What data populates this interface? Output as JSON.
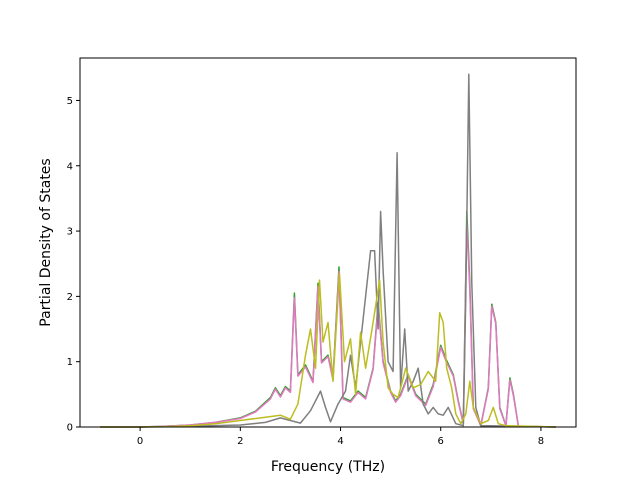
{
  "chart_data": {
    "type": "line",
    "title": "",
    "xlabel": "Frequency (THz)",
    "ylabel": "Partial Density of States",
    "xlim": [
      -1.2,
      8.7
    ],
    "ylim": [
      0,
      5.65
    ],
    "xticks": [
      0,
      2,
      4,
      6,
      8
    ],
    "yticks": [
      0,
      1,
      2,
      3,
      4,
      5
    ],
    "grid": false,
    "legend": "none",
    "series": [
      {
        "color": "#2ca02c",
        "points": [
          [
            -0.8,
            0
          ],
          [
            0,
            0
          ],
          [
            0.5,
            0.01
          ],
          [
            1,
            0.03
          ],
          [
            1.5,
            0.07
          ],
          [
            2,
            0.14
          ],
          [
            2.3,
            0.24
          ],
          [
            2.6,
            0.45
          ],
          [
            2.7,
            0.6
          ],
          [
            2.8,
            0.48
          ],
          [
            2.9,
            0.62
          ],
          [
            3.0,
            0.55
          ],
          [
            3.08,
            2.05
          ],
          [
            3.15,
            0.8
          ],
          [
            3.3,
            0.95
          ],
          [
            3.45,
            0.7
          ],
          [
            3.55,
            2.2
          ],
          [
            3.62,
            1.0
          ],
          [
            3.75,
            1.1
          ],
          [
            3.85,
            0.75
          ],
          [
            3.97,
            2.45
          ],
          [
            4.05,
            0.45
          ],
          [
            4.2,
            0.4
          ],
          [
            4.35,
            0.55
          ],
          [
            4.5,
            0.45
          ],
          [
            4.65,
            0.9
          ],
          [
            4.75,
            1.9
          ],
          [
            4.85,
            1.0
          ],
          [
            5.0,
            0.55
          ],
          [
            5.1,
            0.4
          ],
          [
            5.2,
            0.5
          ],
          [
            5.35,
            0.8
          ],
          [
            5.5,
            0.5
          ],
          [
            5.7,
            0.35
          ],
          [
            5.85,
            0.65
          ],
          [
            6.0,
            1.25
          ],
          [
            6.1,
            1.05
          ],
          [
            6.25,
            0.8
          ],
          [
            6.35,
            0.4
          ],
          [
            6.45,
            0.05
          ],
          [
            6.52,
            3.3
          ],
          [
            6.58,
            2.2
          ],
          [
            6.65,
            0.3
          ],
          [
            6.8,
            0.02
          ],
          [
            6.95,
            0.6
          ],
          [
            7.02,
            1.88
          ],
          [
            7.1,
            1.6
          ],
          [
            7.18,
            0.3
          ],
          [
            7.3,
            0.02
          ],
          [
            7.38,
            0.75
          ],
          [
            7.45,
            0.5
          ],
          [
            7.55,
            0.01
          ],
          [
            8.3,
            0
          ]
        ]
      },
      {
        "color": "#e377c2",
        "points": [
          [
            -0.8,
            0
          ],
          [
            0,
            0
          ],
          [
            0.5,
            0.01
          ],
          [
            1,
            0.03
          ],
          [
            1.5,
            0.07
          ],
          [
            2,
            0.13
          ],
          [
            2.3,
            0.23
          ],
          [
            2.6,
            0.43
          ],
          [
            2.7,
            0.58
          ],
          [
            2.8,
            0.46
          ],
          [
            2.9,
            0.6
          ],
          [
            3.0,
            0.53
          ],
          [
            3.08,
            1.98
          ],
          [
            3.15,
            0.78
          ],
          [
            3.3,
            0.92
          ],
          [
            3.45,
            0.68
          ],
          [
            3.55,
            2.15
          ],
          [
            3.62,
            0.98
          ],
          [
            3.75,
            1.08
          ],
          [
            3.85,
            0.72
          ],
          [
            3.97,
            2.38
          ],
          [
            4.05,
            0.43
          ],
          [
            4.2,
            0.38
          ],
          [
            4.35,
            0.53
          ],
          [
            4.5,
            0.43
          ],
          [
            4.65,
            0.88
          ],
          [
            4.75,
            1.85
          ],
          [
            4.85,
            0.98
          ],
          [
            5.0,
            0.53
          ],
          [
            5.1,
            0.38
          ],
          [
            5.2,
            0.48
          ],
          [
            5.35,
            0.78
          ],
          [
            5.5,
            0.48
          ],
          [
            5.7,
            0.33
          ],
          [
            5.85,
            0.62
          ],
          [
            6.0,
            1.22
          ],
          [
            6.1,
            1.02
          ],
          [
            6.25,
            0.78
          ],
          [
            6.35,
            0.38
          ],
          [
            6.45,
            0.05
          ],
          [
            6.52,
            3.15
          ],
          [
            6.58,
            2.1
          ],
          [
            6.65,
            0.28
          ],
          [
            6.8,
            0.02
          ],
          [
            6.95,
            0.58
          ],
          [
            7.02,
            1.85
          ],
          [
            7.1,
            1.58
          ],
          [
            7.18,
            0.28
          ],
          [
            7.3,
            0.02
          ],
          [
            7.38,
            0.72
          ],
          [
            7.45,
            0.48
          ],
          [
            7.55,
            0.01
          ],
          [
            8.3,
            0
          ]
        ]
      },
      {
        "color": "#7f7f7f",
        "points": [
          [
            -0.8,
            0
          ],
          [
            0,
            0
          ],
          [
            1,
            0.01
          ],
          [
            2,
            0.03
          ],
          [
            2.5,
            0.07
          ],
          [
            2.8,
            0.14
          ],
          [
            3.0,
            0.1
          ],
          [
            3.2,
            0.06
          ],
          [
            3.4,
            0.25
          ],
          [
            3.6,
            0.55
          ],
          [
            3.7,
            0.3
          ],
          [
            3.8,
            0.08
          ],
          [
            3.95,
            0.35
          ],
          [
            4.1,
            0.55
          ],
          [
            4.2,
            1.1
          ],
          [
            4.3,
            0.6
          ],
          [
            4.4,
            1.3
          ],
          [
            4.5,
            2.0
          ],
          [
            4.6,
            2.7
          ],
          [
            4.68,
            2.7
          ],
          [
            4.75,
            1.5
          ],
          [
            4.8,
            3.3
          ],
          [
            4.85,
            2.4
          ],
          [
            4.95,
            1.0
          ],
          [
            5.05,
            0.85
          ],
          [
            5.13,
            4.2
          ],
          [
            5.2,
            0.6
          ],
          [
            5.28,
            1.5
          ],
          [
            5.35,
            0.55
          ],
          [
            5.45,
            0.7
          ],
          [
            5.55,
            0.9
          ],
          [
            5.65,
            0.35
          ],
          [
            5.75,
            0.2
          ],
          [
            5.85,
            0.3
          ],
          [
            5.95,
            0.2
          ],
          [
            6.05,
            0.18
          ],
          [
            6.15,
            0.3
          ],
          [
            6.3,
            0.05
          ],
          [
            6.45,
            0.02
          ],
          [
            6.5,
            2.0
          ],
          [
            6.56,
            5.4
          ],
          [
            6.62,
            2.2
          ],
          [
            6.7,
            0.3
          ],
          [
            6.8,
            0.02
          ],
          [
            7.0,
            0.02
          ],
          [
            8.3,
            0
          ]
        ]
      },
      {
        "color": "#bcbd22",
        "points": [
          [
            -0.8,
            0
          ],
          [
            0,
            0
          ],
          [
            0.5,
            0.005
          ],
          [
            1,
            0.02
          ],
          [
            1.5,
            0.05
          ],
          [
            2,
            0.1
          ],
          [
            2.5,
            0.15
          ],
          [
            2.8,
            0.18
          ],
          [
            3.0,
            0.12
          ],
          [
            3.15,
            0.35
          ],
          [
            3.3,
            1.1
          ],
          [
            3.4,
            1.5
          ],
          [
            3.5,
            0.9
          ],
          [
            3.58,
            2.25
          ],
          [
            3.65,
            1.3
          ],
          [
            3.75,
            1.6
          ],
          [
            3.85,
            0.7
          ],
          [
            3.98,
            2.35
          ],
          [
            4.08,
            1.0
          ],
          [
            4.2,
            1.35
          ],
          [
            4.3,
            0.5
          ],
          [
            4.4,
            1.45
          ],
          [
            4.5,
            0.9
          ],
          [
            4.65,
            1.6
          ],
          [
            4.78,
            2.25
          ],
          [
            4.85,
            1.3
          ],
          [
            4.95,
            0.6
          ],
          [
            5.05,
            0.5
          ],
          [
            5.15,
            0.45
          ],
          [
            5.3,
            0.9
          ],
          [
            5.45,
            0.6
          ],
          [
            5.6,
            0.65
          ],
          [
            5.75,
            0.85
          ],
          [
            5.9,
            0.7
          ],
          [
            5.98,
            1.75
          ],
          [
            6.05,
            1.6
          ],
          [
            6.12,
            0.9
          ],
          [
            6.22,
            0.6
          ],
          [
            6.3,
            0.2
          ],
          [
            6.4,
            0.05
          ],
          [
            6.5,
            0.2
          ],
          [
            6.58,
            0.7
          ],
          [
            6.65,
            0.3
          ],
          [
            6.8,
            0.05
          ],
          [
            6.95,
            0.1
          ],
          [
            7.05,
            0.3
          ],
          [
            7.15,
            0.05
          ],
          [
            7.3,
            0.02
          ],
          [
            8.3,
            0
          ]
        ]
      }
    ]
  }
}
